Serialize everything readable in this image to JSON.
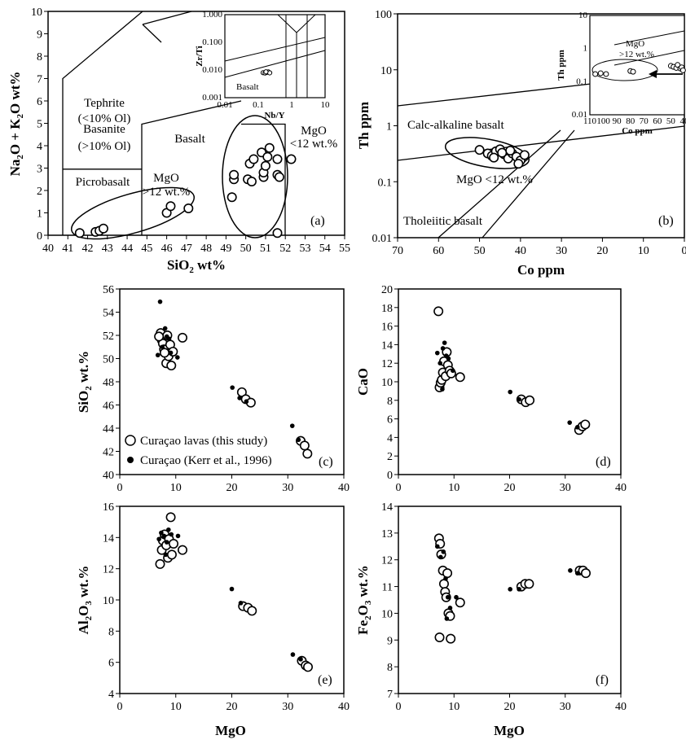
{
  "panels": [
    {
      "id": "a",
      "panel_label": "(a)",
      "chart_data": {
        "type": "scatter",
        "title": "",
        "xlabel": "SiO2 wt%",
        "ylabel": "Na2O + K2O wt%",
        "xlim": [
          40,
          55
        ],
        "ylim": [
          0,
          10
        ],
        "xticks": [
          "40",
          "41",
          "42",
          "43",
          "44",
          "45",
          "46",
          "47",
          "48",
          "49",
          "50",
          "51",
          "52",
          "53",
          "54",
          "55"
        ],
        "yticks": [
          "0",
          "1",
          "2",
          "3",
          "4",
          "5",
          "6",
          "7",
          "8",
          "9",
          "10"
        ],
        "series": [
          {
            "marker": "open",
            "points": [
              [
                41.6,
                0.1
              ],
              [
                42.4,
                0.15
              ],
              [
                42.6,
                0.2
              ],
              [
                42.8,
                0.3
              ],
              [
                46.0,
                1.0
              ],
              [
                46.2,
                1.3
              ],
              [
                47.1,
                1.2
              ],
              [
                49.3,
                1.7
              ],
              [
                49.4,
                2.5
              ],
              [
                49.4,
                2.7
              ],
              [
                50.1,
                2.5
              ],
              [
                50.3,
                2.4
              ],
              [
                50.2,
                3.2
              ],
              [
                50.4,
                3.4
              ],
              [
                50.8,
                3.7
              ],
              [
                50.9,
                2.6
              ],
              [
                50.9,
                2.8
              ],
              [
                51.0,
                3.1
              ],
              [
                51.1,
                3.5
              ],
              [
                51.2,
                3.9
              ],
              [
                51.6,
                3.4
              ],
              [
                51.6,
                2.7
              ],
              [
                51.7,
                2.6
              ],
              [
                51.6,
                0.1
              ],
              [
                52.3,
                3.4
              ]
            ]
          }
        ],
        "field_labels": [
          "Tephrite",
          "(<10% Ol)",
          "Basanite",
          "(>10% Ol)",
          "Basalt",
          "Picrobasalt",
          "MgO",
          ">12 wt.%",
          "MgO",
          "<12 wt.%"
        ],
        "inset": {
          "xlabel": "Nb/Y",
          "ylabel": "Zr/Ti",
          "xticks": [
            "0.01",
            "0.1",
            "1",
            "10"
          ],
          "yticks": [
            "0.001",
            "0.010",
            "0.100",
            "1.000"
          ],
          "field_label": "Basalt",
          "points": [
            [
              0.14,
              0.008
            ],
            [
              0.16,
              0.0078
            ],
            [
              0.18,
              0.0082
            ],
            [
              0.2,
              0.0085
            ],
            [
              0.22,
              0.0079
            ],
            [
              0.17,
              0.0086
            ]
          ]
        }
      }
    },
    {
      "id": "b",
      "panel_label": "(b)",
      "chart_data": {
        "type": "scatter",
        "title": "",
        "xlabel": "Co ppm",
        "ylabel": "Th ppm",
        "xlim": [
          70,
          0
        ],
        "ylim": [
          0.01,
          100
        ],
        "xticks": [
          "70",
          "60",
          "50",
          "40",
          "30",
          "20",
          "10",
          "0"
        ],
        "yticks": [
          "0.01",
          "0.1",
          "1",
          "10",
          "100"
        ],
        "series": [
          {
            "marker": "open",
            "points": [
              [
                50,
                0.37
              ],
              [
                48,
                0.32
              ],
              [
                47,
                0.29
              ],
              [
                46,
                0.35
              ],
              [
                45,
                0.38
              ],
              [
                44,
                0.31
              ],
              [
                43,
                0.26
              ],
              [
                42,
                0.32
              ],
              [
                41,
                0.28
              ],
              [
                40,
                0.24
              ],
              [
                39,
                0.3
              ],
              [
                46.5,
                0.27
              ],
              [
                44.5,
                0.33
              ],
              [
                42.5,
                0.36
              ],
              [
                40.5,
                0.21
              ]
            ]
          }
        ],
        "field_labels": [
          "Calc-alkaline basalt",
          "MgO <12 wt.%",
          "Tholeiitic basalt"
        ],
        "inset": {
          "xlabel": "Co ppm",
          "ylabel": "Th ppm",
          "xticks": [
            "110",
            "100",
            "90",
            "80",
            "70",
            "60",
            "50",
            "40"
          ],
          "yticks": [
            "0.01",
            "0.1",
            "1",
            "10"
          ],
          "field_label_1": "MgO",
          "field_label_2": ">12 wt.%",
          "points": [
            [
              106,
              0.17
            ],
            [
              102,
              0.18
            ],
            [
              98,
              0.17
            ],
            [
              80,
              0.21
            ],
            [
              78,
              0.2
            ],
            [
              50,
              0.3
            ],
            [
              48,
              0.28
            ],
            [
              46,
              0.26
            ],
            [
              45,
              0.32
            ],
            [
              43,
              0.25
            ],
            [
              42,
              0.27
            ],
            [
              41,
              0.22
            ]
          ]
        }
      }
    },
    {
      "id": "c",
      "panel_label": "(c)",
      "chart_data": {
        "type": "scatter",
        "title": "",
        "xlabel": "",
        "ylabel": "SiO2 wt.%",
        "xlim": [
          0,
          40
        ],
        "ylim": [
          40,
          56
        ],
        "xticks": [
          "0",
          "10",
          "20",
          "30",
          "40"
        ],
        "yticks": [
          "40",
          "42",
          "44",
          "46",
          "48",
          "50",
          "52",
          "54",
          "56"
        ],
        "legend_position": "bottom-left",
        "series": [
          {
            "name": "Curaçao lavas (this study)",
            "marker": "open",
            "points": [
              [
                7.3,
                52.2
              ],
              [
                7.5,
                51.6
              ],
              [
                7.7,
                51.3
              ],
              [
                7.9,
                50.8
              ],
              [
                8.3,
                49.6
              ],
              [
                8.5,
                52.0
              ],
              [
                8.7,
                50.2
              ],
              [
                9.0,
                51.2
              ],
              [
                9.2,
                49.4
              ],
              [
                9.5,
                50.6
              ],
              [
                11.2,
                51.8
              ],
              [
                21.8,
                47.1
              ],
              [
                22.5,
                46.5
              ],
              [
                23.4,
                46.2
              ],
              [
                32.3,
                42.9
              ],
              [
                33.0,
                42.5
              ],
              [
                33.5,
                41.8
              ],
              [
                7.0,
                51.9
              ],
              [
                8.0,
                50.5
              ]
            ]
          },
          {
            "name": "Curaçao (Kerr et al., 1996)",
            "marker": "filled",
            "points": [
              [
                7.2,
                54.9
              ],
              [
                7.6,
                51.0
              ],
              [
                8.1,
                52.6
              ],
              [
                8.4,
                51.9
              ],
              [
                8.8,
                51.7
              ],
              [
                9.1,
                50.5
              ],
              [
                10.3,
                50.1
              ],
              [
                6.8,
                50.3
              ],
              [
                20.1,
                47.5
              ],
              [
                21.4,
                46.6
              ],
              [
                22.6,
                46.3
              ],
              [
                30.8,
                44.2
              ],
              [
                31.9,
                43.0
              ]
            ]
          }
        ]
      }
    },
    {
      "id": "d",
      "panel_label": "(d)",
      "chart_data": {
        "type": "scatter",
        "title": "",
        "xlabel": "",
        "ylabel": "CaO",
        "xlim": [
          0,
          40
        ],
        "ylim": [
          0,
          20
        ],
        "xticks": [
          "0",
          "10",
          "20",
          "30",
          "40"
        ],
        "yticks": [
          "0",
          "2",
          "4",
          "6",
          "8",
          "10",
          "12",
          "14",
          "16",
          "18",
          "20"
        ],
        "series": [
          {
            "marker": "open",
            "points": [
              [
                7.2,
                17.6
              ],
              [
                7.4,
                9.4
              ],
              [
                7.6,
                9.9
              ],
              [
                7.8,
                10.2
              ],
              [
                8.0,
                11.0
              ],
              [
                8.2,
                12.2
              ],
              [
                8.5,
                10.6
              ],
              [
                8.7,
                13.2
              ],
              [
                8.9,
                11.8
              ],
              [
                9.2,
                11.2
              ],
              [
                9.5,
                10.9
              ],
              [
                11.1,
                10.5
              ],
              [
                22.1,
                8.1
              ],
              [
                22.9,
                7.8
              ],
              [
                23.6,
                8.0
              ],
              [
                32.5,
                4.8
              ],
              [
                33.1,
                5.2
              ],
              [
                33.6,
                5.4
              ]
            ]
          },
          {
            "marker": "filled",
            "points": [
              [
                7.0,
                13.1
              ],
              [
                7.5,
                12.0
              ],
              [
                8.0,
                13.6
              ],
              [
                8.3,
                14.2
              ],
              [
                8.6,
                12.8
              ],
              [
                9.0,
                12.5
              ],
              [
                9.8,
                11.2
              ],
              [
                7.9,
                9.2
              ],
              [
                20.1,
                8.9
              ],
              [
                21.7,
                8.1
              ],
              [
                30.8,
                5.6
              ],
              [
                32.2,
                5.1
              ]
            ]
          }
        ]
      }
    },
    {
      "id": "e",
      "panel_label": "(e)",
      "chart_data": {
        "type": "scatter",
        "title": "",
        "xlabel": "MgO",
        "ylabel": "Al2O3 wt.%",
        "xlim": [
          0,
          40
        ],
        "ylim": [
          4,
          16
        ],
        "xticks": [
          "0",
          "10",
          "20",
          "30",
          "40"
        ],
        "yticks": [
          "4",
          "6",
          "8",
          "10",
          "12",
          "14",
          "16"
        ],
        "series": [
          {
            "marker": "open",
            "points": [
              [
                7.2,
                12.3
              ],
              [
                7.5,
                13.2
              ],
              [
                7.7,
                13.8
              ],
              [
                8.0,
                14.2
              ],
              [
                8.3,
                13.5
              ],
              [
                8.6,
                12.7
              ],
              [
                8.8,
                13.9
              ],
              [
                9.1,
                15.3
              ],
              [
                9.3,
                12.9
              ],
              [
                9.6,
                13.6
              ],
              [
                11.2,
                13.2
              ],
              [
                22.0,
                9.6
              ],
              [
                22.9,
                9.5
              ],
              [
                23.6,
                9.3
              ],
              [
                32.5,
                6.1
              ],
              [
                33.2,
                5.8
              ],
              [
                33.6,
                5.7
              ]
            ]
          },
          {
            "marker": "filled",
            "points": [
              [
                7.0,
                13.9
              ],
              [
                7.4,
                14.3
              ],
              [
                7.9,
                14.1
              ],
              [
                8.4,
                13.7
              ],
              [
                8.7,
                14.5
              ],
              [
                9.2,
                14.2
              ],
              [
                10.4,
                14.1
              ],
              [
                8.2,
                12.9
              ],
              [
                20.0,
                10.7
              ],
              [
                21.6,
                9.8
              ],
              [
                30.9,
                6.5
              ],
              [
                32.3,
                6.2
              ]
            ]
          }
        ]
      }
    },
    {
      "id": "f",
      "panel_label": "(f)",
      "chart_data": {
        "type": "scatter",
        "title": "",
        "xlabel": "MgO",
        "ylabel": "Fe2O3 wt.%",
        "xlim": [
          0,
          40
        ],
        "ylim": [
          7,
          14
        ],
        "xticks": [
          "0",
          "10",
          "20",
          "30",
          "40"
        ],
        "yticks": [
          "7",
          "8",
          "9",
          "10",
          "11",
          "12",
          "13",
          "14"
        ],
        "series": [
          {
            "marker": "open",
            "points": [
              [
                7.3,
                12.8
              ],
              [
                7.5,
                12.6
              ],
              [
                7.7,
                12.2
              ],
              [
                8.0,
                11.6
              ],
              [
                8.2,
                11.1
              ],
              [
                8.4,
                10.8
              ],
              [
                8.6,
                10.6
              ],
              [
                8.8,
                11.5
              ],
              [
                9.0,
                10.0
              ],
              [
                9.3,
                9.9
              ],
              [
                11.1,
                10.4
              ],
              [
                7.4,
                9.1
              ],
              [
                9.4,
                9.05
              ],
              [
                22.1,
                11.0
              ],
              [
                22.8,
                11.1
              ],
              [
                23.5,
                11.1
              ],
              [
                32.6,
                11.6
              ],
              [
                33.2,
                11.6
              ],
              [
                33.7,
                11.5
              ]
            ]
          },
          {
            "marker": "filled",
            "points": [
              [
                7.0,
                12.5
              ],
              [
                7.6,
                12.1
              ],
              [
                8.1,
                12.3
              ],
              [
                8.5,
                11.3
              ],
              [
                8.9,
                10.6
              ],
              [
                9.3,
                10.2
              ],
              [
                10.4,
                10.6
              ],
              [
                8.7,
                9.8
              ],
              [
                20.1,
                10.9
              ],
              [
                21.7,
                10.9
              ],
              [
                30.9,
                11.6
              ],
              [
                32.2,
                11.5
              ]
            ]
          }
        ]
      }
    }
  ]
}
